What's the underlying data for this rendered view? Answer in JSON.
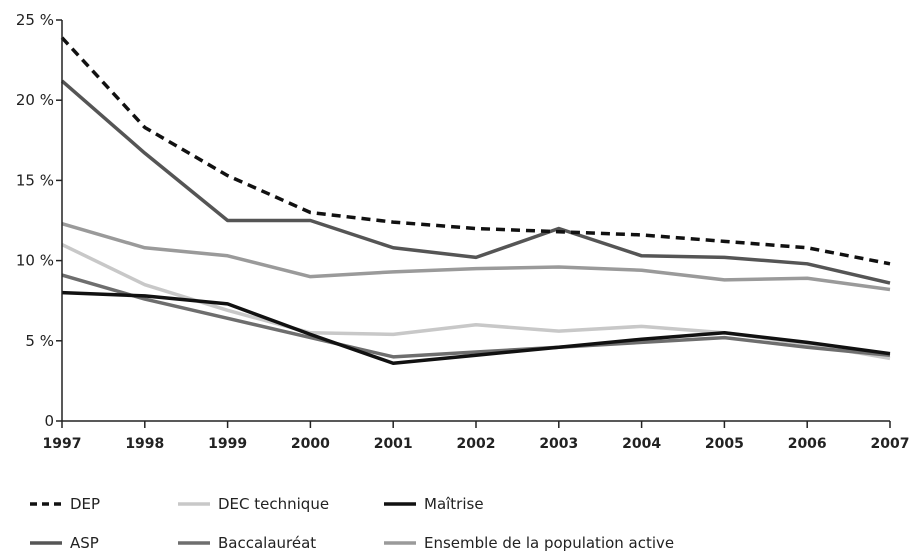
{
  "chart_data": {
    "type": "line",
    "x": [
      "1997",
      "1998",
      "1999",
      "2000",
      "2001",
      "2002",
      "2003",
      "2004",
      "2005",
      "2006",
      "2007"
    ],
    "ylim": [
      0,
      25
    ],
    "yticks": [
      {
        "value": 0,
        "label": "0"
      },
      {
        "value": 5,
        "label": "5 %"
      },
      {
        "value": 10,
        "label": "10 %"
      },
      {
        "value": 15,
        "label": "15 %"
      },
      {
        "value": 20,
        "label": "20 %"
      },
      {
        "value": 25,
        "label": "25 %"
      }
    ],
    "grid": false,
    "legend_position": "bottom",
    "series": [
      {
        "name": "DEP",
        "color": "#111111",
        "dash": "dashed",
        "values": [
          23.9,
          18.3,
          15.3,
          13.0,
          12.4,
          12.0,
          11.8,
          11.6,
          11.2,
          10.8,
          9.8
        ]
      },
      {
        "name": "DEC technique",
        "color": "#c8c8c8",
        "dash": "solid",
        "values": [
          11.0,
          8.5,
          6.9,
          5.5,
          5.4,
          6.0,
          5.6,
          5.9,
          5.5,
          4.8,
          3.9
        ]
      },
      {
        "name": "Maîtrise",
        "color": "#111111",
        "dash": "solid",
        "values": [
          8.0,
          7.8,
          7.3,
          5.4,
          3.6,
          4.1,
          4.6,
          5.1,
          5.5,
          4.9,
          4.2
        ]
      },
      {
        "name": "ASP",
        "color": "#555555",
        "dash": "solid",
        "values": [
          21.2,
          16.7,
          12.5,
          12.5,
          10.8,
          10.2,
          12.0,
          10.3,
          10.2,
          9.8,
          8.6
        ]
      },
      {
        "name": "Baccalauréat",
        "color": "#6e6e6e",
        "dash": "solid",
        "values": [
          9.1,
          7.6,
          6.4,
          5.2,
          4.0,
          4.3,
          4.6,
          4.9,
          5.2,
          4.6,
          4.1
        ]
      },
      {
        "name": "Ensemble de la population active",
        "color": "#9a9a9a",
        "dash": "solid",
        "values": [
          12.3,
          10.8,
          10.3,
          9.0,
          9.3,
          9.5,
          9.6,
          9.4,
          8.8,
          8.9,
          8.2
        ]
      }
    ]
  }
}
